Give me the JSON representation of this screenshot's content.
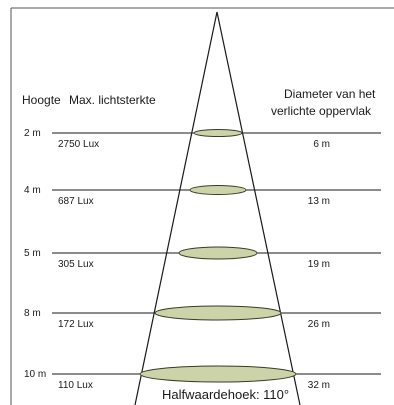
{
  "headers": {
    "height": "Hoogte",
    "intensity": "Max. lichtsterkte",
    "diameter_line1": "Diameter van het",
    "diameter_line2": "verlichte oppervlak"
  },
  "rows": [
    {
      "height": "2 m",
      "lux": "2750 Lux",
      "diameter": "6 m",
      "diameter_m": 6
    },
    {
      "height": "4 m",
      "lux": "687 Lux",
      "diameter": "13 m",
      "diameter_m": 13
    },
    {
      "height": "5 m",
      "lux": "305 Lux",
      "diameter": "19 m",
      "diameter_m": 19
    },
    {
      "height": "8 m",
      "lux": "172 Lux",
      "diameter": "26 m",
      "diameter_m": 26
    },
    {
      "height": "10 m",
      "lux": "110 Lux",
      "diameter": "32 m",
      "diameter_m": 32
    }
  ],
  "footer": "Halfwaardehoek: 110°",
  "colors": {
    "ellipse_fill": "#cdd3a8",
    "ellipse_stroke": "#3a3a2a",
    "line": "#1a1a1a",
    "frame": "#555555"
  }
}
